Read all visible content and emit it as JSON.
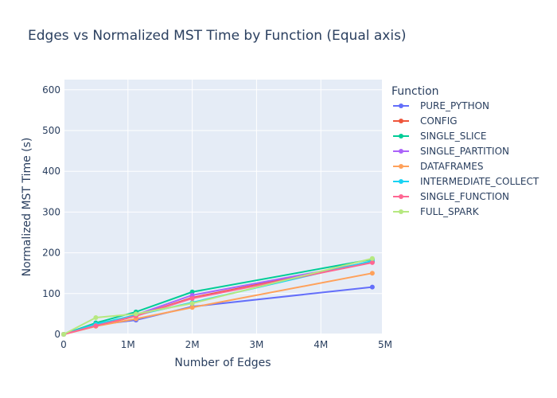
{
  "chart_data": {
    "type": "line",
    "title": "Edges vs Normalized MST Time by Function (Equal axis)",
    "xlabel": "Number of Edges",
    "ylabel": "Normalized MST Time (s)",
    "xlim": [
      0,
      4950000
    ],
    "ylim": [
      0,
      625
    ],
    "x_ticks": [
      {
        "value": 0,
        "label": "0"
      },
      {
        "value": 1000000,
        "label": "1M"
      },
      {
        "value": 2000000,
        "label": "2M"
      },
      {
        "value": 3000000,
        "label": "3M"
      },
      {
        "value": 4000000,
        "label": "4M"
      },
      {
        "value": 5000000,
        "label": "5M"
      }
    ],
    "y_ticks": [
      0,
      100,
      200,
      300,
      400,
      500,
      600
    ],
    "grid": true,
    "legend": {
      "title": "Function",
      "placement": "right"
    },
    "x": [
      0,
      500000,
      1125000,
      2000000,
      4800000
    ],
    "series": [
      {
        "name": "PURE_PYTHON",
        "color": "#636efa",
        "values": [
          0,
          23,
          35,
          68,
          116
        ]
      },
      {
        "name": "CONFIG",
        "color": "#ef553b",
        "values": [
          0,
          20,
          45,
          90,
          178
        ]
      },
      {
        "name": "SINGLE_SLICE",
        "color": "#00cc96",
        "values": [
          0,
          28,
          55,
          104,
          184
        ]
      },
      {
        "name": "SINGLE_PARTITION",
        "color": "#ab63fa",
        "values": [
          0,
          22,
          48,
          96,
          178
        ]
      },
      {
        "name": "DATAFRAMES",
        "color": "#ffa15a",
        "values": [
          0,
          20,
          38,
          66,
          150
        ]
      },
      {
        "name": "INTERMEDIATE_COLLECT",
        "color": "#19d3f3",
        "values": [
          0,
          25,
          47,
          78,
          180
        ]
      },
      {
        "name": "SINGLE_FUNCTION",
        "color": "#ff6692",
        "values": [
          0,
          21,
          45,
          88,
          176
        ]
      },
      {
        "name": "FULL_SPARK",
        "color": "#b6e880",
        "values": [
          0,
          41,
          50,
          76,
          186
        ]
      }
    ]
  }
}
